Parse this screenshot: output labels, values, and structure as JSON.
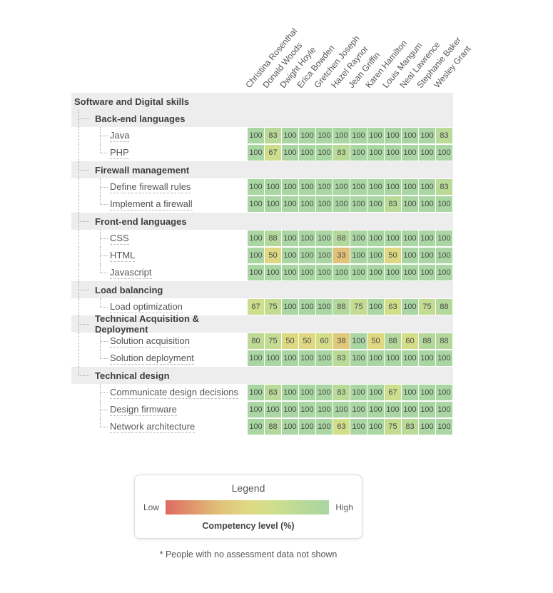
{
  "legend": {
    "title": "Legend",
    "low_label": "Low",
    "high_label": "High",
    "caption": "Competency level (%)"
  },
  "footnote": "* People with no assessment data not shown",
  "chart_data": {
    "type": "heatmap",
    "title": "Software and Digital skills",
    "unit": "Competency level (%)",
    "legend_position": "bottom",
    "value_range": [
      0,
      100
    ],
    "columns": [
      "Christina Rosenthal",
      "Donald Woods",
      "Dwight Hoyle",
      "Erica Bowden",
      "Gretchen Joseph",
      "Hazel Raynor",
      "Jean Griffin",
      "Karen Hamilton",
      "Louis Mangum",
      "Neal Lawrence",
      "Stephanie Baker",
      "Wesley Grant"
    ],
    "root_label": "Software and Digital skills",
    "groups": [
      {
        "label": "Back-end languages",
        "skills": [
          {
            "label": "Java",
            "values": [
              100,
              83,
              100,
              100,
              100,
              100,
              100,
              100,
              100,
              100,
              100,
              83
            ]
          },
          {
            "label": "PHP",
            "values": [
              100,
              67,
              100,
              100,
              100,
              83,
              100,
              100,
              100,
              100,
              100,
              100
            ]
          }
        ]
      },
      {
        "label": "Firewall management",
        "skills": [
          {
            "label": "Define firewall rules",
            "values": [
              100,
              100,
              100,
              100,
              100,
              100,
              100,
              100,
              100,
              100,
              100,
              83
            ]
          },
          {
            "label": "Implement a firewall",
            "values": [
              100,
              100,
              100,
              100,
              100,
              100,
              100,
              100,
              83,
              100,
              100,
              100
            ]
          }
        ]
      },
      {
        "label": "Front-end languages",
        "skills": [
          {
            "label": "CSS",
            "values": [
              100,
              88,
              100,
              100,
              100,
              88,
              100,
              100,
              100,
              100,
              100,
              100
            ]
          },
          {
            "label": "HTML",
            "values": [
              100,
              50,
              100,
              100,
              100,
              33,
              100,
              100,
              50,
              100,
              100,
              100
            ]
          },
          {
            "label": "Javascript",
            "values": [
              100,
              100,
              100,
              100,
              100,
              100,
              100,
              100,
              100,
              100,
              100,
              100
            ]
          }
        ]
      },
      {
        "label": "Load balancing",
        "skills": [
          {
            "label": "Load optimization",
            "values": [
              67,
              75,
              100,
              100,
              100,
              88,
              75,
              100,
              63,
              100,
              75,
              88
            ]
          }
        ]
      },
      {
        "label": "Technical Acquisition & Deployment",
        "skills": [
          {
            "label": "Solution acquisition",
            "values": [
              80,
              75,
              50,
              50,
              60,
              38,
              100,
              50,
              88,
              60,
              88,
              88
            ]
          },
          {
            "label": "Solution deployment",
            "values": [
              100,
              100,
              100,
              100,
              100,
              83,
              100,
              100,
              100,
              100,
              100,
              100
            ]
          }
        ]
      },
      {
        "label": "Technical design",
        "skills": [
          {
            "label": "Communicate design decisions",
            "values": [
              100,
              83,
              100,
              100,
              100,
              83,
              100,
              100,
              67,
              100,
              100,
              100
            ]
          },
          {
            "label": "Design firmware",
            "values": [
              100,
              100,
              100,
              100,
              100,
              100,
              100,
              100,
              100,
              100,
              100,
              100
            ]
          },
          {
            "label": "Network architecture",
            "values": [
              100,
              88,
              100,
              100,
              100,
              63,
              100,
              100,
              75,
              83,
              100,
              100
            ]
          }
        ]
      }
    ],
    "color_scale": {
      "low_label": "Low",
      "high_label": "High",
      "stops": [
        {
          "value": 0,
          "color": "#dd6b62"
        },
        {
          "value": 33,
          "color": "#e2c178"
        },
        {
          "value": 50,
          "color": "#dfd883"
        },
        {
          "value": 63,
          "color": "#d2df8a"
        },
        {
          "value": 75,
          "color": "#c4dc92"
        },
        {
          "value": 88,
          "color": "#b4d89b"
        },
        {
          "value": 100,
          "color": "#a9d6a2"
        }
      ]
    }
  }
}
